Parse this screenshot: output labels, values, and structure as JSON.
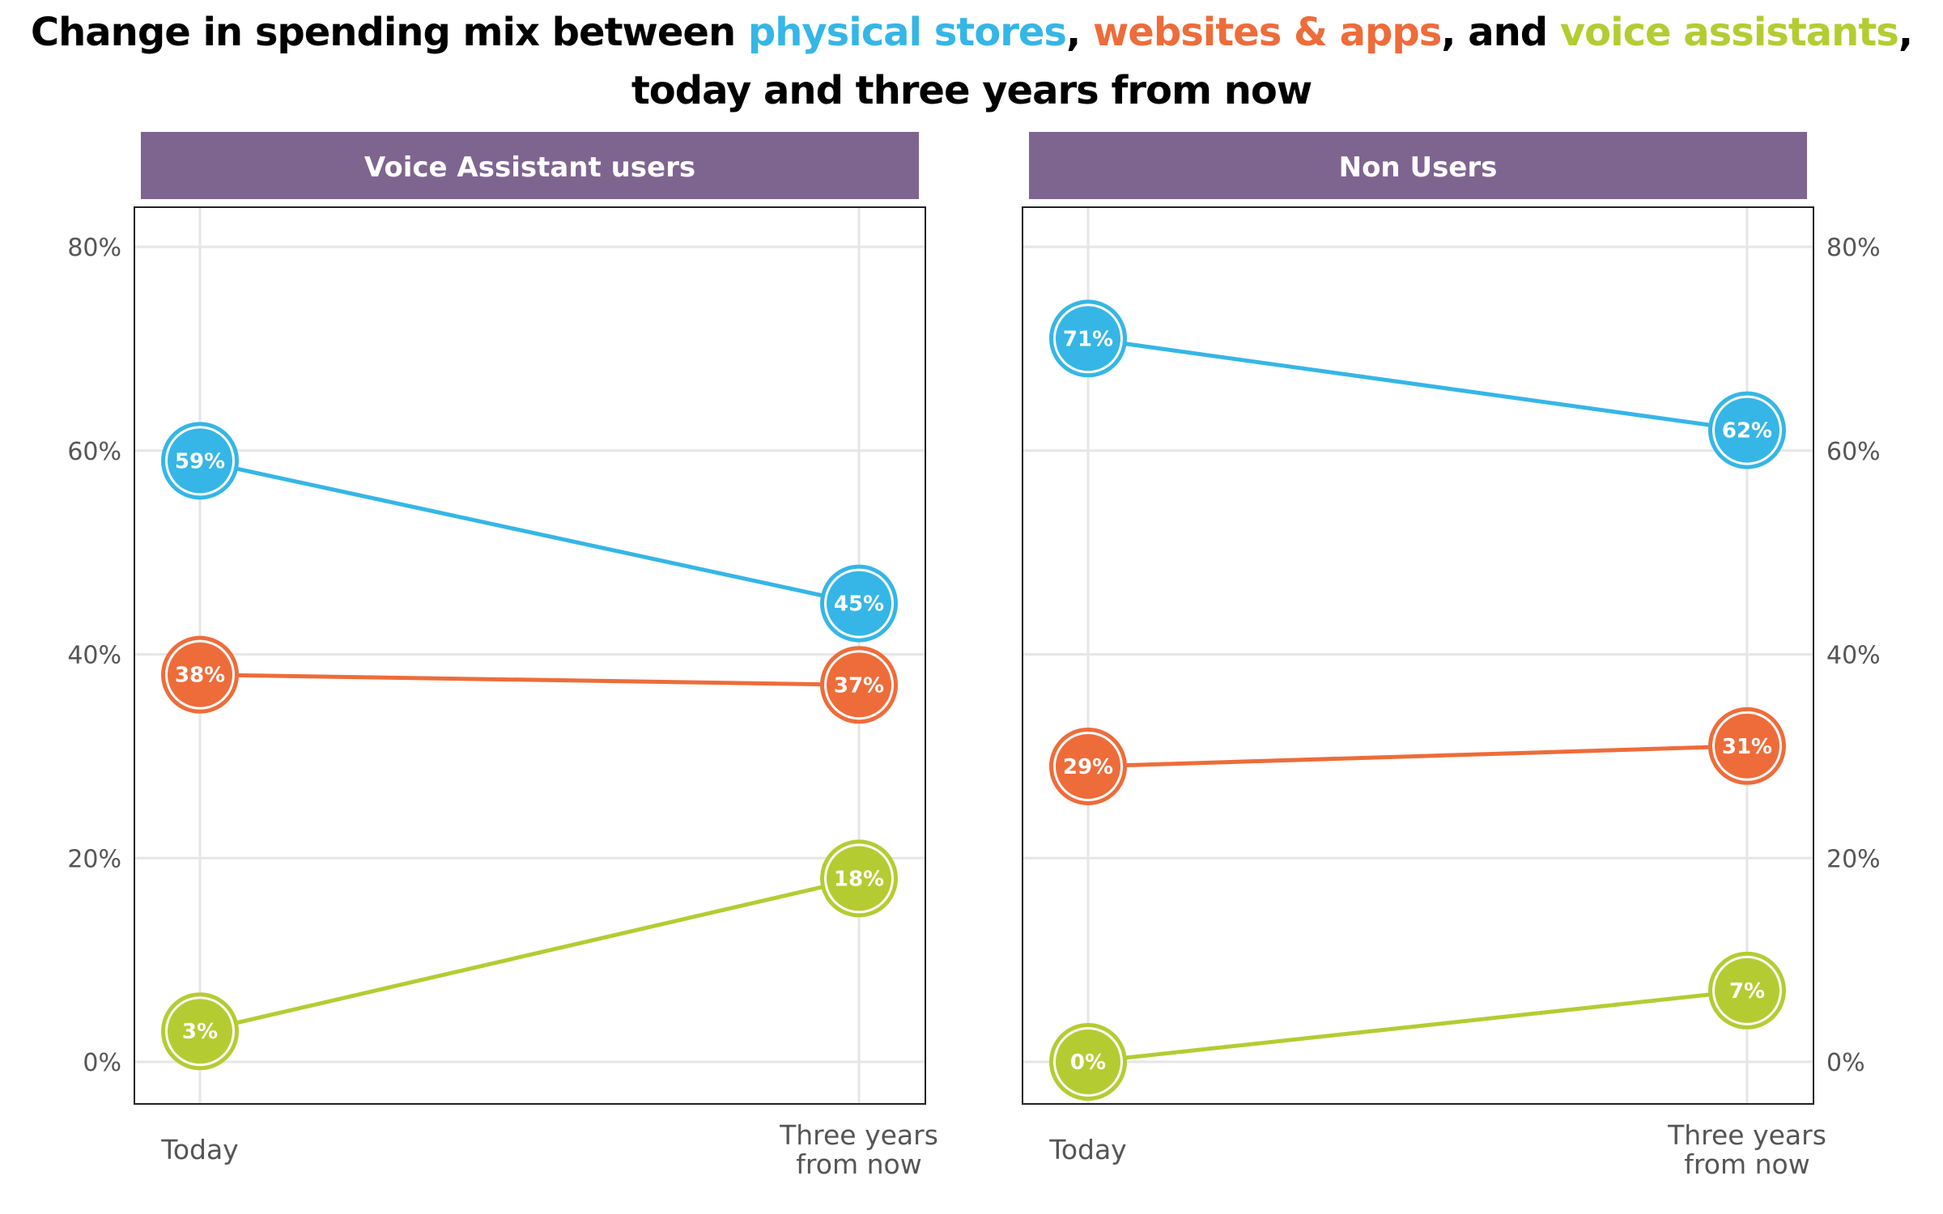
{
  "title": {
    "line1_pre": "Change in spending mix between ",
    "store": "physical stores",
    "sep1": ", ",
    "web": "websites & apps",
    "sep2": ", and ",
    "voice": "voice assistants",
    "line1_end": ",",
    "line2": "today and three years from now"
  },
  "colors": {
    "physical_stores": "#35b6e6",
    "websites_apps": "#ee6c3a",
    "voice_assistants": "#b4cc32",
    "strip": "#7e6590"
  },
  "chart_data": {
    "type": "line",
    "ylim": [
      0,
      80
    ],
    "yticks": [
      "0%",
      "20%",
      "40%",
      "60%",
      "80%"
    ],
    "ytick_values": [
      0,
      20,
      40,
      60,
      80
    ],
    "categories": [
      "Today",
      "Three years from now"
    ],
    "category_lines": [
      [
        "Today"
      ],
      [
        "Three years",
        "from now"
      ]
    ],
    "panels": [
      {
        "name": "Voice Assistant users",
        "series": [
          {
            "key": "physical_stores",
            "values": [
              59,
              45
            ],
            "labels": [
              "59%",
              "45%"
            ]
          },
          {
            "key": "websites_apps",
            "values": [
              38,
              37
            ],
            "labels": [
              "38%",
              "37%"
            ]
          },
          {
            "key": "voice_assistants",
            "values": [
              3,
              18
            ],
            "labels": [
              "3%",
              "18%"
            ]
          }
        ]
      },
      {
        "name": "Non Users",
        "series": [
          {
            "key": "physical_stores",
            "values": [
              71,
              62
            ],
            "labels": [
              "71%",
              "62%"
            ]
          },
          {
            "key": "websites_apps",
            "values": [
              29,
              31
            ],
            "labels": [
              "29%",
              "31%"
            ]
          },
          {
            "key": "voice_assistants",
            "values": [
              0,
              7
            ],
            "labels": [
              "0%",
              "7%"
            ]
          }
        ]
      }
    ]
  }
}
